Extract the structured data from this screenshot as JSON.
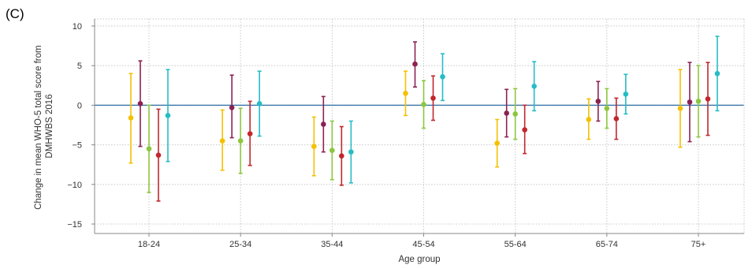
{
  "panel_label": "(C)",
  "chart_data": {
    "type": "scatter",
    "xlabel": "Age group",
    "ylabel_lines": [
      "Change in mean WHO-5 total score from",
      "DMHWBS 2016"
    ],
    "ylim": [
      -15,
      10
    ],
    "yticks": [
      -15,
      -10,
      -5,
      0,
      5,
      10
    ],
    "ytick_labels": [
      "−15",
      "−10",
      "−5",
      "0",
      "5",
      "10"
    ],
    "grid": "dotted",
    "reference_line": 0,
    "reference_color": "#2e6da4",
    "categories": [
      "18-24",
      "25-34",
      "35-44",
      "45-54",
      "55-64",
      "65-74",
      "75+"
    ],
    "series": [
      {
        "color": "#f5c000",
        "values": [
          -1.6,
          -4.5,
          -5.2,
          1.5,
          -4.8,
          -1.8,
          -0.4
        ],
        "lower": [
          -7.3,
          -8.2,
          -8.9,
          -1.3,
          -7.8,
          -4.3,
          -5.3
        ],
        "upper": [
          4.0,
          -0.6,
          -1.5,
          4.3,
          -1.8,
          0.8,
          4.5
        ]
      },
      {
        "color": "#8b2252",
        "values": [
          0.2,
          -0.3,
          -2.4,
          5.2,
          -1.0,
          0.5,
          0.4
        ],
        "lower": [
          -5.2,
          -4.1,
          -5.9,
          2.3,
          -4.0,
          -2.0,
          -4.6
        ],
        "upper": [
          5.6,
          3.8,
          1.1,
          8.0,
          2.0,
          3.0,
          5.4
        ]
      },
      {
        "color": "#8cc63f",
        "values": [
          -5.5,
          -4.5,
          -5.7,
          0.1,
          -1.1,
          -0.4,
          0.5
        ],
        "lower": [
          -11.0,
          -8.6,
          -9.4,
          -2.9,
          -4.3,
          -2.9,
          -4.0
        ],
        "upper": [
          0.0,
          -0.4,
          -2.0,
          3.1,
          2.1,
          2.1,
          5.0
        ]
      },
      {
        "color": "#c1272d",
        "values": [
          -6.3,
          -3.6,
          -6.4,
          0.9,
          -3.1,
          -1.7,
          0.8
        ],
        "lower": [
          -12.1,
          -7.6,
          -10.1,
          -1.9,
          -6.1,
          -4.3,
          -3.8
        ],
        "upper": [
          -0.5,
          0.5,
          -2.7,
          3.7,
          0.0,
          0.9,
          5.4
        ]
      },
      {
        "color": "#27bcc5",
        "values": [
          -1.3,
          0.2,
          -5.9,
          3.6,
          2.4,
          1.4,
          4.0
        ],
        "lower": [
          -7.1,
          -3.9,
          -9.8,
          0.6,
          -0.7,
          -1.1,
          -0.7
        ],
        "upper": [
          4.5,
          4.3,
          -2.0,
          6.5,
          5.5,
          3.9,
          8.7
        ]
      }
    ]
  }
}
